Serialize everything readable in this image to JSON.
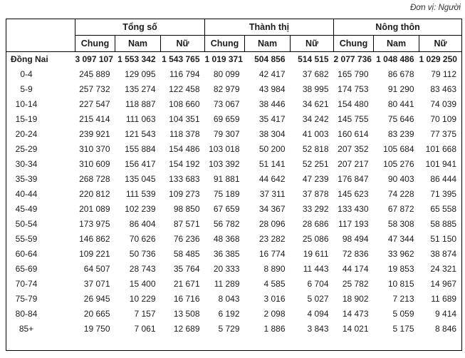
{
  "meta": {
    "unit_label": "Đơn vị: Người"
  },
  "table": {
    "groups": [
      "Tổng số",
      "Thành thị",
      "Nông thôn"
    ],
    "sub_headers": [
      "Chung",
      "Nam",
      "Nữ"
    ],
    "total_row": {
      "label": "Đồng Nai",
      "values": [
        "3 097 107",
        "1 553 342",
        "1 543 765",
        "1 019 371",
        "504 856",
        "514 515",
        "2 077 736",
        "1 048 486",
        "1 029 250"
      ]
    },
    "rows": [
      {
        "label": "0-4",
        "values": [
          "245 889",
          "129 095",
          "116 794",
          "80 099",
          "42 417",
          "37 682",
          "165 790",
          "86 678",
          "79 112"
        ]
      },
      {
        "label": "5-9",
        "values": [
          "257 732",
          "135 274",
          "122 458",
          "82 979",
          "43 984",
          "38 995",
          "174 753",
          "91 290",
          "83 463"
        ]
      },
      {
        "label": "10-14",
        "values": [
          "227 547",
          "118 887",
          "108 660",
          "73 067",
          "38 446",
          "34 621",
          "154 480",
          "80 441",
          "74 039"
        ]
      },
      {
        "label": "15-19",
        "values": [
          "215 414",
          "111 063",
          "104 351",
          "69 659",
          "35 417",
          "34 242",
          "145 755",
          "75 646",
          "70 109"
        ]
      },
      {
        "label": "20-24",
        "values": [
          "239 921",
          "121 543",
          "118 378",
          "79 307",
          "38 304",
          "41 003",
          "160 614",
          "83 239",
          "77 375"
        ]
      },
      {
        "label": "25-29",
        "values": [
          "310 370",
          "155 884",
          "154 486",
          "103 018",
          "50 200",
          "52 818",
          "207 352",
          "105 684",
          "101 668"
        ]
      },
      {
        "label": "30-34",
        "values": [
          "310 609",
          "156 417",
          "154 192",
          "103 392",
          "51 141",
          "52 251",
          "207 217",
          "105 276",
          "101 941"
        ]
      },
      {
        "label": "35-39",
        "values": [
          "268 728",
          "135 045",
          "133 683",
          "91 881",
          "44 642",
          "47 239",
          "176 847",
          "90 403",
          "86 444"
        ]
      },
      {
        "label": "40-44",
        "values": [
          "220 812",
          "111 539",
          "109 273",
          "75 189",
          "37 311",
          "37 878",
          "145 623",
          "74 228",
          "71 395"
        ]
      },
      {
        "label": "45-49",
        "values": [
          "201 089",
          "102 239",
          "98 850",
          "67 659",
          "34 367",
          "33 292",
          "133 430",
          "67 872",
          "65 558"
        ]
      },
      {
        "label": "50-54",
        "values": [
          "173 975",
          "86 404",
          "87 571",
          "56 782",
          "28 096",
          "28 686",
          "117 193",
          "58 308",
          "58 885"
        ]
      },
      {
        "label": "55-59",
        "values": [
          "146 862",
          "70 626",
          "76 236",
          "48 368",
          "23 282",
          "25 086",
          "98 494",
          "47 344",
          "51 150"
        ]
      },
      {
        "label": "60-64",
        "values": [
          "109 221",
          "50 736",
          "58 485",
          "36 385",
          "16 774",
          "19 611",
          "72 836",
          "33 962",
          "38 874"
        ]
      },
      {
        "label": "65-69",
        "values": [
          "64 507",
          "28 743",
          "35 764",
          "20 333",
          "8 890",
          "11 443",
          "44 174",
          "19 853",
          "24 321"
        ]
      },
      {
        "label": "70-74",
        "values": [
          "37 071",
          "15 400",
          "21 671",
          "11 289",
          "4 585",
          "6 704",
          "25 782",
          "10 815",
          "14 967"
        ]
      },
      {
        "label": "75-79",
        "values": [
          "26 945",
          "10 229",
          "16 716",
          "8 043",
          "3 016",
          "5 027",
          "18 902",
          "7 213",
          "11 689"
        ]
      },
      {
        "label": "80-84",
        "values": [
          "20 665",
          "7 157",
          "13 508",
          "6 192",
          "2 098",
          "4 094",
          "14 473",
          "5 059",
          "9 414"
        ]
      },
      {
        "label": "85+",
        "values": [
          "19 750",
          "7 061",
          "12 689",
          "5 729",
          "1 886",
          "3 843",
          "14 021",
          "5 175",
          "8 846"
        ]
      }
    ]
  }
}
